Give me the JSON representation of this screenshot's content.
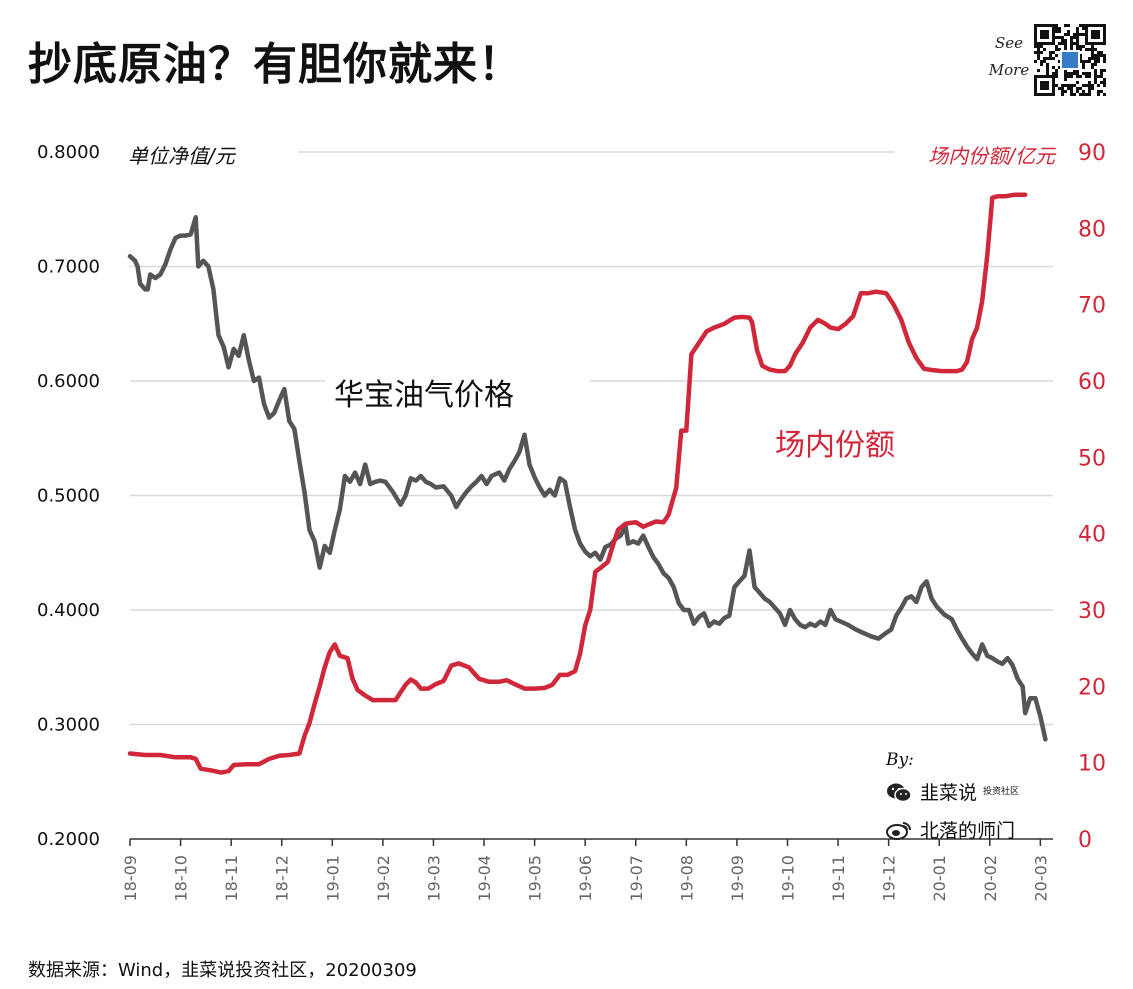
{
  "title": "抄底原油？有胆你就来！",
  "see_more": "See More",
  "source": "数据来源：Wind，韭菜说投资社区，20200309",
  "byline": "By:",
  "credits": [
    {
      "icon": "wechat-icon",
      "text": "韭菜说",
      "suffix": "投资社区"
    },
    {
      "icon": "weibo-icon",
      "text": "北落的师门"
    }
  ],
  "colors": {
    "nav": "#555555",
    "shares": "#d0283a",
    "grid": "#d9d9d9",
    "text": "#111111"
  },
  "chart_data": {
    "type": "line",
    "x": [
      "18-09",
      "18-10",
      "18-11",
      "18-12",
      "19-01",
      "19-02",
      "19-03",
      "19-04",
      "19-05",
      "19-06",
      "19-07",
      "19-08",
      "19-09",
      "19-10",
      "19-11",
      "19-12",
      "20-01",
      "20-02",
      "20-03"
    ],
    "xlim": [
      0,
      18.25
    ],
    "left_axis": {
      "label": "单位净值/元",
      "ticks": [
        "0.2000",
        "0.3000",
        "0.4000",
        "0.5000",
        "0.6000",
        "0.7000",
        "0.8000"
      ],
      "range": [
        0.2,
        0.8
      ]
    },
    "right_axis": {
      "label": "场内份额/亿元",
      "ticks": [
        "0",
        "10",
        "20",
        "30",
        "40",
        "50",
        "60",
        "70",
        "80",
        "90"
      ],
      "range": [
        0,
        90
      ]
    },
    "grid": true,
    "series": [
      {
        "name": "华宝油气价格",
        "axis": "left",
        "points": [
          [
            0,
            0.709
          ],
          [
            0.1,
            0.705
          ],
          [
            0.15,
            0.7
          ],
          [
            0.2,
            0.685
          ],
          [
            0.3,
            0.68
          ],
          [
            0.35,
            0.68
          ],
          [
            0.4,
            0.693
          ],
          [
            0.5,
            0.69
          ],
          [
            0.6,
            0.693
          ],
          [
            0.7,
            0.702
          ],
          [
            0.8,
            0.715
          ],
          [
            0.9,
            0.725
          ],
          [
            1,
            0.727
          ],
          [
            1.1,
            0.727
          ],
          [
            1.2,
            0.728
          ],
          [
            1.3,
            0.743
          ],
          [
            1.35,
            0.7
          ],
          [
            1.45,
            0.705
          ],
          [
            1.55,
            0.7
          ],
          [
            1.65,
            0.68
          ],
          [
            1.75,
            0.64
          ],
          [
            1.85,
            0.63
          ],
          [
            1.95,
            0.612
          ],
          [
            2.05,
            0.628
          ],
          [
            2.15,
            0.622
          ],
          [
            2.25,
            0.64
          ],
          [
            2.35,
            0.618
          ],
          [
            2.45,
            0.6
          ],
          [
            2.55,
            0.603
          ],
          [
            2.65,
            0.58
          ],
          [
            2.75,
            0.568
          ],
          [
            2.85,
            0.572
          ],
          [
            2.95,
            0.583
          ],
          [
            3.05,
            0.593
          ],
          [
            3.15,
            0.565
          ],
          [
            3.25,
            0.558
          ],
          [
            3.35,
            0.53
          ],
          [
            3.45,
            0.503
          ],
          [
            3.55,
            0.47
          ],
          [
            3.65,
            0.46
          ],
          [
            3.75,
            0.437
          ],
          [
            3.85,
            0.456
          ],
          [
            3.95,
            0.45
          ],
          [
            4.05,
            0.47
          ],
          [
            4.15,
            0.488
          ],
          [
            4.25,
            0.517
          ],
          [
            4.35,
            0.512
          ],
          [
            4.45,
            0.52
          ],
          [
            4.55,
            0.51
          ],
          [
            4.65,
            0.527
          ],
          [
            4.75,
            0.51
          ],
          [
            4.85,
            0.512
          ],
          [
            4.95,
            0.513
          ],
          [
            5.05,
            0.512
          ],
          [
            5.2,
            0.503
          ],
          [
            5.35,
            0.492
          ],
          [
            5.45,
            0.5
          ],
          [
            5.55,
            0.515
          ],
          [
            5.65,
            0.513
          ],
          [
            5.75,
            0.517
          ],
          [
            5.85,
            0.512
          ],
          [
            5.95,
            0.51
          ],
          [
            6.05,
            0.507
          ],
          [
            6.2,
            0.508
          ],
          [
            6.35,
            0.5
          ],
          [
            6.45,
            0.49
          ],
          [
            6.55,
            0.497
          ],
          [
            6.65,
            0.503
          ],
          [
            6.75,
            0.508
          ],
          [
            6.85,
            0.512
          ],
          [
            6.95,
            0.517
          ],
          [
            7.05,
            0.51
          ],
          [
            7.15,
            0.517
          ],
          [
            7.3,
            0.52
          ],
          [
            7.4,
            0.513
          ],
          [
            7.5,
            0.523
          ],
          [
            7.6,
            0.53
          ],
          [
            7.7,
            0.538
          ],
          [
            7.8,
            0.553
          ],
          [
            7.9,
            0.527
          ],
          [
            8,
            0.516
          ],
          [
            8.1,
            0.507
          ],
          [
            8.2,
            0.5
          ],
          [
            8.3,
            0.505
          ],
          [
            8.4,
            0.5
          ],
          [
            8.5,
            0.515
          ],
          [
            8.6,
            0.512
          ],
          [
            8.7,
            0.49
          ],
          [
            8.8,
            0.47
          ],
          [
            8.9,
            0.458
          ],
          [
            9,
            0.451
          ],
          [
            9.1,
            0.447
          ],
          [
            9.2,
            0.45
          ],
          [
            9.3,
            0.444
          ],
          [
            9.4,
            0.455
          ],
          [
            9.5,
            0.457
          ],
          [
            9.6,
            0.462
          ],
          [
            9.7,
            0.465
          ],
          [
            9.8,
            0.473
          ],
          [
            9.85,
            0.458
          ],
          [
            9.95,
            0.46
          ],
          [
            10.05,
            0.458
          ],
          [
            10.15,
            0.465
          ],
          [
            10.25,
            0.455
          ],
          [
            10.35,
            0.446
          ],
          [
            10.45,
            0.44
          ],
          [
            10.55,
            0.432
          ],
          [
            10.65,
            0.428
          ],
          [
            10.75,
            0.42
          ],
          [
            10.85,
            0.406
          ],
          [
            10.95,
            0.4
          ],
          [
            11.05,
            0.4
          ],
          [
            11.15,
            0.388
          ],
          [
            11.25,
            0.394
          ],
          [
            11.35,
            0.397
          ],
          [
            11.45,
            0.386
          ],
          [
            11.55,
            0.39
          ],
          [
            11.65,
            0.388
          ],
          [
            11.75,
            0.393
          ],
          [
            11.85,
            0.395
          ],
          [
            11.95,
            0.42
          ],
          [
            12.05,
            0.425
          ],
          [
            12.15,
            0.43
          ],
          [
            12.25,
            0.452
          ],
          [
            12.35,
            0.42
          ],
          [
            12.45,
            0.415
          ],
          [
            12.55,
            0.41
          ],
          [
            12.65,
            0.407
          ],
          [
            12.75,
            0.402
          ],
          [
            12.85,
            0.397
          ],
          [
            12.95,
            0.387
          ],
          [
            13.05,
            0.4
          ],
          [
            13.15,
            0.392
          ],
          [
            13.25,
            0.387
          ],
          [
            13.35,
            0.385
          ],
          [
            13.45,
            0.388
          ],
          [
            13.55,
            0.386
          ],
          [
            13.65,
            0.39
          ],
          [
            13.75,
            0.387
          ],
          [
            13.85,
            0.4
          ],
          [
            13.95,
            0.392
          ],
          [
            14.05,
            0.39
          ],
          [
            14.2,
            0.387
          ],
          [
            14.35,
            0.383
          ],
          [
            14.5,
            0.38
          ],
          [
            14.65,
            0.377
          ],
          [
            14.8,
            0.375
          ],
          [
            14.95,
            0.38
          ],
          [
            15.05,
            0.383
          ],
          [
            15.15,
            0.395
          ],
          [
            15.25,
            0.402
          ],
          [
            15.35,
            0.41
          ],
          [
            15.45,
            0.412
          ],
          [
            15.55,
            0.407
          ],
          [
            15.65,
            0.42
          ],
          [
            15.75,
            0.425
          ],
          [
            15.85,
            0.41
          ],
          [
            15.95,
            0.403
          ],
          [
            16.1,
            0.396
          ],
          [
            16.25,
            0.392
          ],
          [
            16.35,
            0.383
          ],
          [
            16.45,
            0.375
          ],
          [
            16.55,
            0.368
          ],
          [
            16.65,
            0.362
          ],
          [
            16.75,
            0.357
          ],
          [
            16.85,
            0.37
          ],
          [
            16.95,
            0.36
          ],
          [
            17.05,
            0.358
          ],
          [
            17.15,
            0.355
          ],
          [
            17.25,
            0.353
          ],
          [
            17.35,
            0.358
          ],
          [
            17.45,
            0.352
          ],
          [
            17.55,
            0.34
          ],
          [
            17.65,
            0.333
          ],
          [
            17.7,
            0.31
          ],
          [
            17.8,
            0.323
          ],
          [
            17.9,
            0.323
          ],
          [
            18.0,
            0.307
          ],
          [
            18.1,
            0.287
          ]
        ]
      },
      {
        "name": "场内份额",
        "axis": "right",
        "points": [
          [
            0,
            11.2
          ],
          [
            0.3,
            11.0
          ],
          [
            0.6,
            11.0
          ],
          [
            0.9,
            10.7
          ],
          [
            1.2,
            10.7
          ],
          [
            1.3,
            10.5
          ],
          [
            1.4,
            9.2
          ],
          [
            1.6,
            9.0
          ],
          [
            1.8,
            8.7
          ],
          [
            1.95,
            8.9
          ],
          [
            2.05,
            9.7
          ],
          [
            2.3,
            9.8
          ],
          [
            2.55,
            9.8
          ],
          [
            2.75,
            10.5
          ],
          [
            2.95,
            10.9
          ],
          [
            3.15,
            11.0
          ],
          [
            3.35,
            11.2
          ],
          [
            3.45,
            13.5
          ],
          [
            3.55,
            15.2
          ],
          [
            3.65,
            17.7
          ],
          [
            3.75,
            20.0
          ],
          [
            3.85,
            22.5
          ],
          [
            3.95,
            24.5
          ],
          [
            4.05,
            25.5
          ],
          [
            4.15,
            24.0
          ],
          [
            4.3,
            23.7
          ],
          [
            4.4,
            21.0
          ],
          [
            4.5,
            19.5
          ],
          [
            4.65,
            18.8
          ],
          [
            4.8,
            18.2
          ],
          [
            5.0,
            18.2
          ],
          [
            5.25,
            18.2
          ],
          [
            5.45,
            20.2
          ],
          [
            5.55,
            20.9
          ],
          [
            5.65,
            20.5
          ],
          [
            5.75,
            19.7
          ],
          [
            5.9,
            19.7
          ],
          [
            6.05,
            20.3
          ],
          [
            6.2,
            20.7
          ],
          [
            6.35,
            22.7
          ],
          [
            6.5,
            23.0
          ],
          [
            6.7,
            22.5
          ],
          [
            6.9,
            21.0
          ],
          [
            7.1,
            20.6
          ],
          [
            7.3,
            20.6
          ],
          [
            7.45,
            20.8
          ],
          [
            7.6,
            20.3
          ],
          [
            7.8,
            19.7
          ],
          [
            8.0,
            19.7
          ],
          [
            8.2,
            19.8
          ],
          [
            8.35,
            20.2
          ],
          [
            8.5,
            21.5
          ],
          [
            8.65,
            21.5
          ],
          [
            8.8,
            22.0
          ],
          [
            8.9,
            24.3
          ],
          [
            9.0,
            28.0
          ],
          [
            9.1,
            30.0
          ],
          [
            9.2,
            35.0
          ],
          [
            9.3,
            35.5
          ],
          [
            9.45,
            36.3
          ],
          [
            9.55,
            38.5
          ],
          [
            9.65,
            40.5
          ],
          [
            9.8,
            41.3
          ],
          [
            10.0,
            41.5
          ],
          [
            10.15,
            40.9
          ],
          [
            10.25,
            41.2
          ],
          [
            10.4,
            41.6
          ],
          [
            10.55,
            41.5
          ],
          [
            10.65,
            42.5
          ],
          [
            10.8,
            46.0
          ],
          [
            10.9,
            53.5
          ],
          [
            11.0,
            53.5
          ],
          [
            11.1,
            63.5
          ],
          [
            11.25,
            65.0
          ],
          [
            11.4,
            66.5
          ],
          [
            11.55,
            67.0
          ],
          [
            11.75,
            67.5
          ],
          [
            11.95,
            68.3
          ],
          [
            12.1,
            68.4
          ],
          [
            12.25,
            68.3
          ],
          [
            12.3,
            67.7
          ],
          [
            12.4,
            64.0
          ],
          [
            12.5,
            62.0
          ],
          [
            12.65,
            61.5
          ],
          [
            12.8,
            61.3
          ],
          [
            12.95,
            61.3
          ],
          [
            13.05,
            62.0
          ],
          [
            13.15,
            63.5
          ],
          [
            13.3,
            65.0
          ],
          [
            13.45,
            67.0
          ],
          [
            13.6,
            68.0
          ],
          [
            13.75,
            67.5
          ],
          [
            13.85,
            67.0
          ],
          [
            14.0,
            66.8
          ],
          [
            14.15,
            67.5
          ],
          [
            14.3,
            68.5
          ],
          [
            14.45,
            71.5
          ],
          [
            14.6,
            71.5
          ],
          [
            14.75,
            71.7
          ],
          [
            14.95,
            71.5
          ],
          [
            15.1,
            70.0
          ],
          [
            15.25,
            68.0
          ],
          [
            15.4,
            65.0
          ],
          [
            15.55,
            63.0
          ],
          [
            15.7,
            61.6
          ],
          [
            15.9,
            61.4
          ],
          [
            16.05,
            61.3
          ],
          [
            16.2,
            61.3
          ],
          [
            16.35,
            61.3
          ],
          [
            16.45,
            61.5
          ],
          [
            16.55,
            62.5
          ],
          [
            16.65,
            65.5
          ],
          [
            16.75,
            67.0
          ],
          [
            16.85,
            70.5
          ],
          [
            16.95,
            76.5
          ],
          [
            17.05,
            84.0
          ],
          [
            17.15,
            84.2
          ],
          [
            17.3,
            84.2
          ],
          [
            17.5,
            84.4
          ],
          [
            17.7,
            84.4
          ]
        ]
      }
    ],
    "annotations": [
      {
        "text": "华宝油气价格",
        "series": 0
      },
      {
        "text": "场内份额",
        "series": 1
      }
    ]
  }
}
